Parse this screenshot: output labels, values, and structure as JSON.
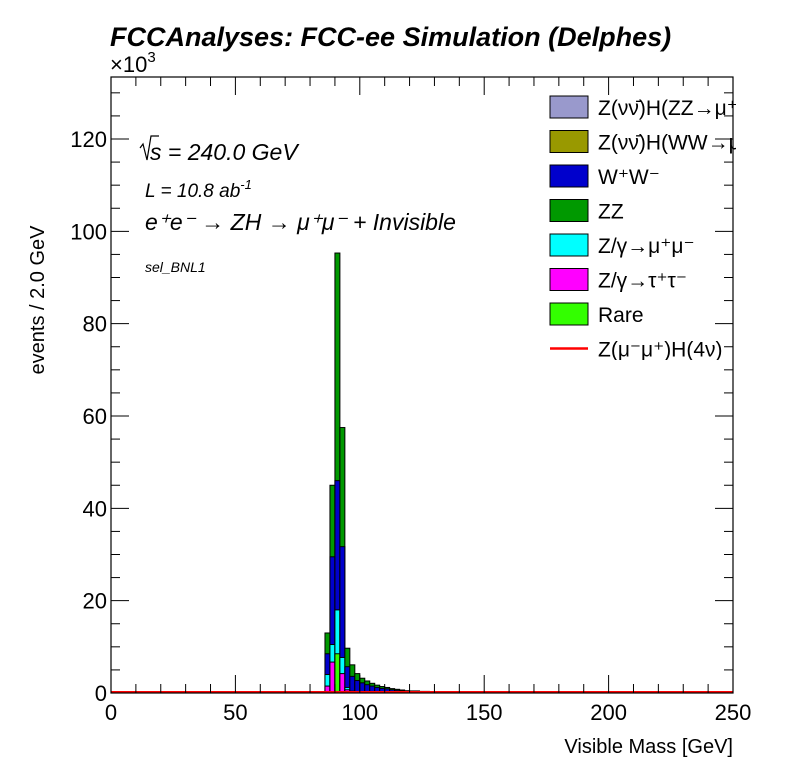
{
  "chart_data": {
    "type": "bar",
    "stacked": true,
    "title": "FCCAnalyses: FCC-ee Simulation (Delphes)",
    "xlabel": "Visible Mass [GeV]",
    "ylabel": "events / 2.0 GeV",
    "y_multiplier_label": "×10",
    "y_multiplier_exp": "3",
    "xlim": [
      0,
      250
    ],
    "ylim": [
      0,
      133
    ],
    "bin_width": 2,
    "x_ticks": [
      "0",
      "50",
      "100",
      "150",
      "200",
      "250"
    ],
    "y_ticks": [
      "0",
      "20",
      "40",
      "60",
      "80",
      "100",
      "120"
    ],
    "annotations": {
      "sqrt_s": "s = 240.0 GeV",
      "lumi": "L = 10.8 ab",
      "lumi_exp": "-1",
      "process": "e⁺e⁻ → ZH → μ⁺μ⁻ + Invisible",
      "selection": "sel_BNL1"
    },
    "legend_position": "top-right",
    "bin_edges_start": [
      86,
      88,
      90,
      92,
      94,
      96,
      98,
      100,
      102,
      104,
      106,
      108,
      110,
      112,
      114,
      116,
      118,
      120,
      124,
      128,
      136
    ],
    "series": [
      {
        "name": "Z(νν̄)H(ZZ→μ⁺μ⁻νν̄)",
        "color": "#9999cc",
        "values": [
          0,
          0,
          0,
          0,
          0,
          0,
          0,
          0,
          0,
          0,
          0,
          0,
          0,
          0,
          0,
          0,
          0,
          0,
          0,
          0,
          0
        ]
      },
      {
        "name": "Z(νν̄)H(WW→μ⁺νμ⁻ν̄)",
        "color": "#999900",
        "values": [
          0,
          0,
          0,
          0,
          0,
          0,
          0,
          0,
          0,
          0,
          0,
          0,
          0,
          0,
          0,
          0,
          0,
          0,
          0,
          0,
          0
        ]
      },
      {
        "name": "Rare",
        "color": "#33ff00",
        "values": [
          0,
          0.2,
          8.5,
          0.2,
          0.1,
          0,
          0,
          0,
          0,
          0,
          0,
          0,
          0,
          0,
          0,
          0,
          0,
          0,
          0,
          0,
          0
        ]
      },
      {
        "name": "Z/γ→τ⁺τ⁻",
        "color": "#ff00ff",
        "values": [
          1.5,
          6.5,
          0,
          4.0,
          0.6,
          0.2,
          0.1,
          0,
          0,
          0,
          0,
          0,
          0,
          0,
          0,
          0,
          0,
          0,
          0,
          0,
          0
        ]
      },
      {
        "name": "Z/γ→μ⁺μ⁻",
        "color": "#00ffff",
        "values": [
          2.5,
          3.8,
          9.5,
          3.5,
          0.5,
          0.2,
          0,
          0,
          0,
          0,
          0,
          0,
          0,
          0,
          0,
          0,
          0,
          0,
          0,
          0,
          0
        ]
      },
      {
        "name": "W⁺W⁻",
        "color": "#0000cc",
        "values": [
          4.5,
          19.0,
          28.0,
          24.0,
          4.5,
          3.2,
          2.6,
          2.2,
          1.8,
          1.5,
          1.2,
          1.0,
          0.9,
          0.7,
          0.6,
          0.5,
          0.4,
          0.35,
          0.3,
          0.2,
          0.1
        ]
      },
      {
        "name": "ZZ",
        "color": "#009900",
        "values": [
          4.5,
          15.5,
          49.3,
          25.8,
          4.0,
          2.5,
          1.5,
          1.0,
          0.8,
          0.6,
          0.5,
          0.4,
          0.3,
          0.25,
          0.2,
          0.15,
          0.1,
          0.1,
          0.05,
          0.05,
          0
        ]
      },
      {
        "name": "Z(μ⁻μ⁺)H(4ν)",
        "color": "#ff0000",
        "type": "line",
        "values": [
          0.1,
          0.1,
          0.1,
          0.1,
          0.1,
          0.1,
          0.1,
          0.1,
          0.1,
          0.1,
          0.1,
          0.1,
          0.1,
          0.1,
          0.1,
          0.1,
          0.1,
          0.1,
          0.1,
          0.1,
          0.1
        ]
      }
    ],
    "legend": [
      {
        "label": "Z(νν̄)H(ZZ→μ⁺μ⁻νν̄)",
        "color": "#9999cc",
        "kind": "box"
      },
      {
        "label": "Z(νν̄)H(WW→μ⁺νμ⁻ν̄)",
        "color": "#999900",
        "kind": "box"
      },
      {
        "label": "W⁺W⁻",
        "color": "#0000cc",
        "kind": "box"
      },
      {
        "label": "ZZ",
        "color": "#009900",
        "kind": "box"
      },
      {
        "label": "Z/γ→μ⁺μ⁻",
        "color": "#00ffff",
        "kind": "box"
      },
      {
        "label": "Z/γ→τ⁺τ⁻",
        "color": "#ff00ff",
        "kind": "box"
      },
      {
        "label": "Rare",
        "color": "#33ff00",
        "kind": "box"
      },
      {
        "label": "Z(μ⁻μ⁺)H(4ν)",
        "color": "#ff0000",
        "kind": "line"
      }
    ]
  }
}
